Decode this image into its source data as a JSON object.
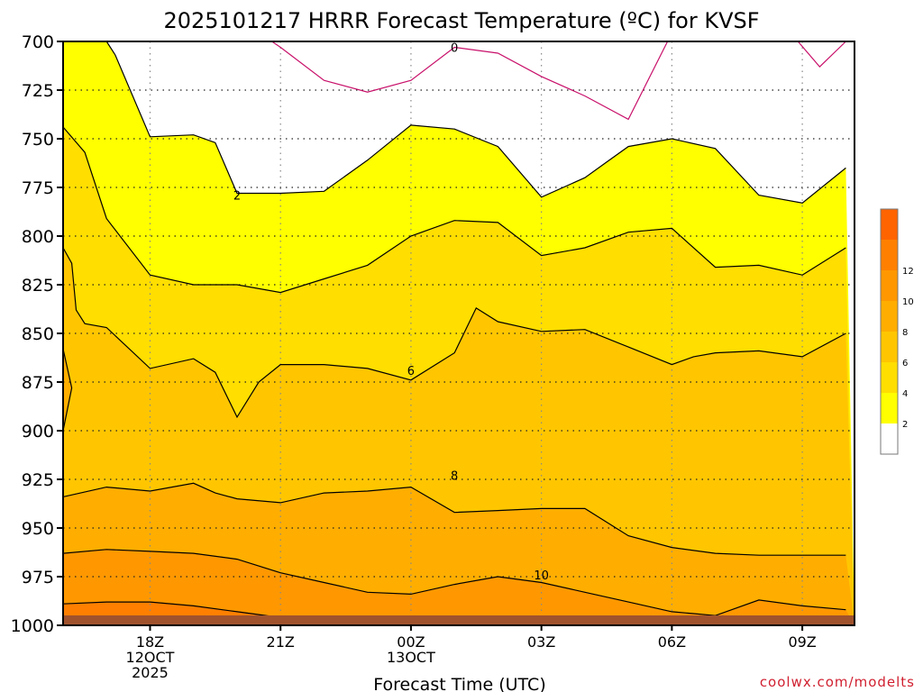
{
  "chart_data": {
    "type": "contour",
    "title": "2025101217 HRRR Forecast Temperature (ºC) for KVSF",
    "xlabel": "Forecast Time (UTC)",
    "ylabel": "",
    "credit": "coolwx.com/modelts",
    "x_hours": [
      0,
      6,
      12,
      18,
      24,
      30,
      36
    ],
    "xlim": [
      -1,
      17.2
    ],
    "x_tick_hours": [
      1,
      4,
      7,
      10,
      13,
      16
    ],
    "x_tick_labels": [
      [
        "18Z",
        "12OCT",
        "2025"
      ],
      [
        "21Z"
      ],
      [
        "00Z",
        "13OCT"
      ],
      [
        "03Z"
      ],
      [
        "06Z"
      ],
      [
        "09Z"
      ]
    ],
    "yticks": [
      700,
      725,
      750,
      775,
      800,
      825,
      850,
      875,
      900,
      925,
      950,
      975,
      1000
    ],
    "ylim": [
      1000,
      700
    ],
    "grid": true,
    "colorbar": {
      "levels": [
        2,
        4,
        6,
        8,
        10,
        12
      ],
      "labels": [
        "2",
        "4",
        "6",
        "8",
        "10",
        "12"
      ],
      "colors": [
        "#ffffff",
        "#ffff00",
        "#ffde00",
        "#ffc600",
        "#ffae00",
        "#ff9800",
        "#ff8000",
        "#ff6400"
      ]
    },
    "contour_labels": [
      {
        "text": "0",
        "hour": 8.0,
        "pressure": 703
      },
      {
        "text": "2",
        "hour": 3.0,
        "pressure": 779
      },
      {
        "text": "6",
        "hour": 7.0,
        "pressure": 869
      },
      {
        "text": "8",
        "hour": 8.0,
        "pressure": 923
      },
      {
        "text": "10",
        "hour": 10.0,
        "pressure": 974
      }
    ],
    "isotherms": [
      {
        "level": 0,
        "segments": [
          [
            [
              3.8,
              700
            ],
            [
              4.0,
              703
            ],
            [
              5.0,
              720
            ],
            [
              6.0,
              726
            ],
            [
              7.0,
              720
            ],
            [
              8.0,
              703
            ],
            [
              9.0,
              706
            ],
            [
              10.0,
              718
            ],
            [
              11.0,
              728
            ],
            [
              12.0,
              740
            ],
            [
              12.9,
              700
            ]
          ],
          [
            [
              15.9,
              700
            ],
            [
              16.4,
              713
            ],
            [
              17.0,
              700
            ]
          ]
        ]
      },
      {
        "level": 2,
        "segments": [
          [
            [
              0.0,
              700
            ],
            [
              0.2,
              707
            ],
            [
              1.0,
              749
            ],
            [
              2.0,
              748
            ],
            [
              2.5,
              752
            ],
            [
              3.0,
              778
            ],
            [
              4.0,
              778
            ],
            [
              5.0,
              777
            ],
            [
              6.0,
              761
            ],
            [
              6.5,
              752
            ],
            [
              7.0,
              743
            ],
            [
              8.0,
              745
            ],
            [
              9.0,
              754
            ],
            [
              10.0,
              780
            ],
            [
              11.0,
              770
            ],
            [
              11.5,
              762
            ],
            [
              12.0,
              754
            ],
            [
              13.0,
              750
            ],
            [
              14.0,
              755
            ],
            [
              15.0,
              779
            ],
            [
              16.0,
              783
            ],
            [
              17.0,
              765
            ]
          ]
        ]
      },
      {
        "level": 4,
        "segments": [
          [
            [
              -1.0,
              744
            ],
            [
              -0.5,
              757
            ],
            [
              0.0,
              791
            ],
            [
              1.0,
              820
            ],
            [
              2.0,
              825
            ],
            [
              3.0,
              825
            ],
            [
              4.0,
              829
            ],
            [
              5.0,
              822
            ],
            [
              6.0,
              815
            ],
            [
              7.0,
              800
            ],
            [
              8.0,
              792
            ],
            [
              9.0,
              793
            ],
            [
              10.0,
              810
            ],
            [
              11.0,
              806
            ],
            [
              12.0,
              798
            ],
            [
              13.0,
              796
            ],
            [
              14.0,
              816
            ],
            [
              15.0,
              815
            ],
            [
              16.0,
              820
            ],
            [
              17.0,
              806
            ]
          ]
        ]
      },
      {
        "level": 6,
        "segments": [
          [
            [
              -1.0,
              806
            ],
            [
              -0.8,
              814
            ],
            [
              -0.7,
              838
            ],
            [
              -0.5,
              845
            ],
            [
              0.0,
              847
            ],
            [
              1.0,
              868
            ],
            [
              2.0,
              863
            ],
            [
              2.5,
              870
            ],
            [
              3.0,
              893
            ],
            [
              3.5,
              875
            ],
            [
              4.0,
              866
            ],
            [
              5.0,
              866
            ],
            [
              6.0,
              868
            ],
            [
              7.0,
              874
            ],
            [
              8.0,
              860
            ],
            [
              8.5,
              837
            ],
            [
              9.0,
              844
            ],
            [
              10.0,
              849
            ],
            [
              11.0,
              848
            ],
            [
              12.0,
              857
            ],
            [
              13.0,
              866
            ],
            [
              13.5,
              862
            ],
            [
              14.0,
              860
            ],
            [
              15.0,
              859
            ],
            [
              16.0,
              862
            ],
            [
              17.0,
              850
            ]
          ]
        ]
      },
      {
        "level": 8,
        "segments": [
          [
            [
              -1.0,
              858
            ],
            [
              -0.8,
              878
            ],
            [
              -1.0,
              900
            ]
          ],
          [
            [
              -1.0,
              934
            ],
            [
              0.0,
              929
            ],
            [
              1.0,
              931
            ],
            [
              2.0,
              927
            ],
            [
              2.5,
              932
            ],
            [
              3.0,
              935
            ],
            [
              4.0,
              937
            ],
            [
              5.0,
              932
            ],
            [
              6.0,
              931
            ],
            [
              7.0,
              929
            ],
            [
              8.0,
              942
            ],
            [
              9.0,
              941
            ],
            [
              10.0,
              940
            ],
            [
              11.0,
              940
            ],
            [
              12.0,
              954
            ],
            [
              13.0,
              960
            ],
            [
              14.0,
              963
            ],
            [
              15.0,
              964
            ],
            [
              16.0,
              964
            ],
            [
              17.0,
              964
            ]
          ]
        ]
      },
      {
        "level": 10,
        "segments": [
          [
            [
              -1.0,
              963
            ],
            [
              0.0,
              961
            ],
            [
              1.0,
              962
            ],
            [
              2.0,
              963
            ],
            [
              3.0,
              966
            ],
            [
              4.0,
              973
            ],
            [
              5.0,
              978
            ],
            [
              6.0,
              983
            ],
            [
              7.0,
              984
            ],
            [
              8.0,
              979
            ],
            [
              9.0,
              975
            ],
            [
              10.0,
              978
            ],
            [
              11.0,
              983
            ],
            [
              12.0,
              988
            ],
            [
              13.0,
              993
            ],
            [
              13.5,
              994
            ],
            [
              14.0,
              995
            ],
            [
              15.0,
              987
            ],
            [
              16.0,
              990
            ],
            [
              17.0,
              992
            ]
          ]
        ]
      },
      {
        "level": 12,
        "segments": [
          [
            [
              -1.0,
              989
            ],
            [
              0.0,
              988
            ],
            [
              1.0,
              988
            ],
            [
              2.0,
              990
            ],
            [
              3.0,
              993
            ],
            [
              4.0,
              996
            ],
            [
              5.0,
              998
            ]
          ]
        ]
      }
    ]
  }
}
